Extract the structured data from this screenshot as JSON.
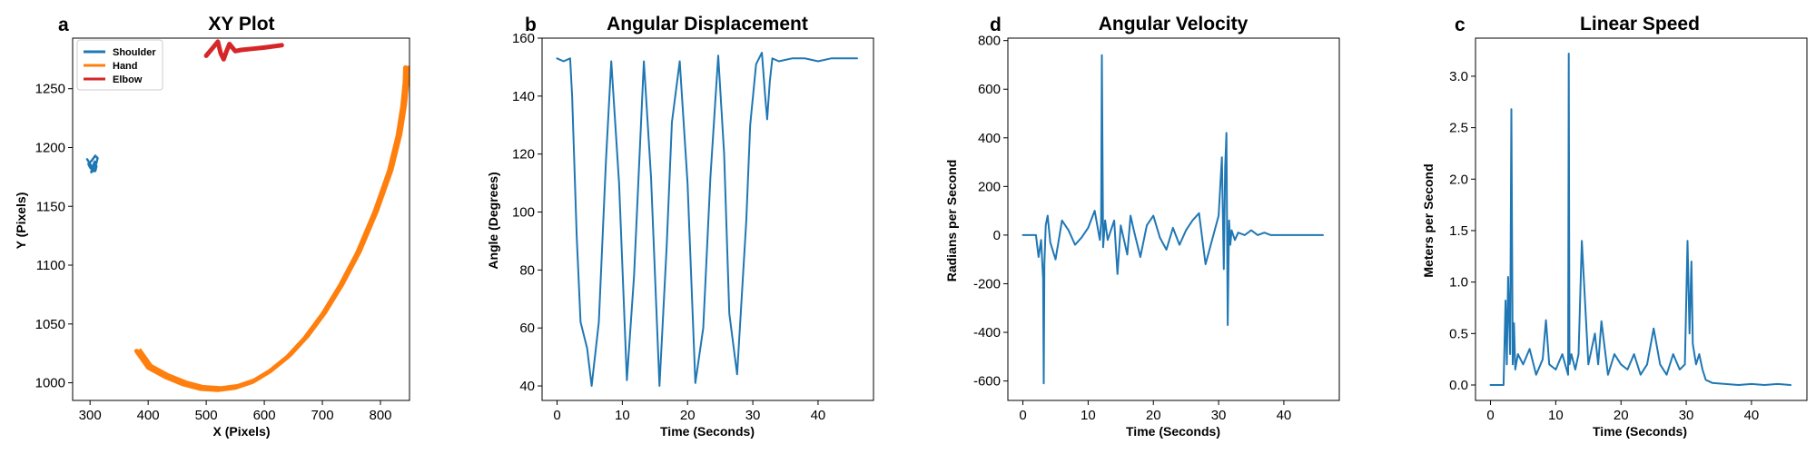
{
  "chart_data": [
    {
      "type": "line",
      "panel_letter": "a",
      "title": "XY Plot",
      "xlabel": "X (Pixels)",
      "ylabel": "Y (Pixels)",
      "xlim": [
        270,
        850
      ],
      "ylim": [
        985,
        1293
      ],
      "xticks": [
        300,
        400,
        500,
        600,
        700,
        800
      ],
      "yticks": [
        1000,
        1050,
        1100,
        1150,
        1200,
        1250
      ],
      "legend": "top-left",
      "series": [
        {
          "name": "Shoulder",
          "color": "#1f77b4",
          "x": [
            295,
            300,
            305,
            309,
            311,
            308,
            304,
            302,
            307,
            311,
            313,
            309,
            303,
            297,
            300,
            306
          ],
          "y": [
            1190,
            1186,
            1182,
            1180,
            1184,
            1188,
            1183,
            1179,
            1181,
            1187,
            1191,
            1193,
            1189,
            1186,
            1183,
            1180
          ]
        },
        {
          "name": "Hand",
          "color": "#ff7f0e",
          "x": [
            380,
            400,
            430,
            460,
            490,
            520,
            550,
            580,
            610,
            640,
            670,
            700,
            730,
            760,
            790,
            815,
            830,
            838,
            842,
            843
          ],
          "y": [
            1027,
            1013,
            1005,
            999,
            995,
            994,
            996,
            1001,
            1010,
            1022,
            1038,
            1058,
            1082,
            1110,
            1145,
            1180,
            1210,
            1235,
            1255,
            1268
          ]
        },
        {
          "name": "Elbow",
          "color": "#d62728",
          "x": [
            500,
            510,
            520,
            525,
            530,
            535,
            540,
            550,
            560,
            580,
            600,
            630
          ],
          "y": [
            1278,
            1284,
            1290,
            1280,
            1275,
            1282,
            1288,
            1282,
            1283,
            1284,
            1285,
            1287
          ]
        }
      ]
    },
    {
      "type": "line",
      "panel_letter": "b",
      "title": "Angular Displacement",
      "xlabel": "Time (Seconds)",
      "ylabel": "Angle (Degrees)",
      "xlim": [
        -2.3,
        48.5
      ],
      "ylim": [
        35,
        160
      ],
      "xticks": [
        0,
        10,
        20,
        30,
        40
      ],
      "yticks": [
        40,
        60,
        80,
        100,
        120,
        140,
        160
      ],
      "series": [
        {
          "name": "",
          "color": "#1f77b4",
          "x": [
            0,
            1,
            2,
            2.3,
            3,
            3.6,
            4.6,
            5.3,
            6.4,
            7.5,
            8.3,
            9.5,
            10.7,
            11.8,
            13.3,
            14.4,
            15.7,
            16.8,
            17.6,
            18.8,
            20.0,
            21.2,
            22.4,
            23.5,
            24.7,
            25.6,
            26.4,
            27.6,
            29.0,
            29.6,
            30.5,
            31.4,
            31.9,
            32.2,
            32.6,
            33.0,
            34.0,
            36.0,
            38.0,
            40.0,
            42.0,
            44.0,
            46.0
          ],
          "y": [
            153,
            152,
            153,
            140,
            92,
            62,
            53,
            40,
            62,
            118,
            152,
            110,
            42,
            78,
            152,
            112,
            40,
            88,
            131,
            152,
            110,
            41,
            60,
            112,
            154,
            120,
            65,
            44,
            97,
            130,
            151,
            155,
            140,
            132,
            145,
            153,
            152,
            153,
            153,
            152,
            153,
            153,
            153
          ]
        }
      ]
    },
    {
      "type": "line",
      "panel_letter": "d",
      "title": "Angular Velocity",
      "xlabel": "Time (Seconds)",
      "ylabel": "Radians per Second",
      "xlim": [
        -2.3,
        48.5
      ],
      "ylim": [
        -680,
        810
      ],
      "xticks": [
        0,
        10,
        20,
        30,
        40
      ],
      "yticks": [
        -600,
        -400,
        -200,
        0,
        200,
        400,
        600,
        800
      ],
      "series": [
        {
          "name": "",
          "color": "#1f77b4",
          "x": [
            0,
            1,
            2,
            2.4,
            2.8,
            3.1,
            3.2,
            3.3,
            3.5,
            3.8,
            4.2,
            5.0,
            6.0,
            7.0,
            8.0,
            9.0,
            10.0,
            11.0,
            11.8,
            12.0,
            12.1,
            12.3,
            12.6,
            13.0,
            14.0,
            14.5,
            15.0,
            16.0,
            16.5,
            17.0,
            18.0,
            19.0,
            20.0,
            21.0,
            22.0,
            23.0,
            24.0,
            25.0,
            26.0,
            27.0,
            28.0,
            29.0,
            30.0,
            30.5,
            30.8,
            31.0,
            31.2,
            31.4,
            31.6,
            31.8,
            32.0,
            32.5,
            33.0,
            34.0,
            35.0,
            36.0,
            37.0,
            38.0,
            40.0,
            42.0,
            44.0,
            46.0
          ],
          "y": [
            0,
            0,
            0,
            -90,
            -20,
            -180,
            -610,
            -120,
            40,
            80,
            -30,
            -100,
            60,
            20,
            -40,
            -10,
            30,
            100,
            -20,
            50,
            740,
            -50,
            60,
            -20,
            60,
            -160,
            40,
            -80,
            80,
            20,
            -90,
            40,
            80,
            -10,
            -60,
            30,
            -40,
            20,
            60,
            90,
            -120,
            -20,
            80,
            320,
            -140,
            280,
            420,
            -370,
            60,
            -40,
            20,
            -20,
            10,
            0,
            20,
            0,
            10,
            0,
            0,
            0,
            0,
            0
          ]
        }
      ]
    },
    {
      "type": "line",
      "panel_letter": "c",
      "title": "Linear Speed",
      "xlabel": "Time (Seconds)",
      "ylabel": "Meters per Second",
      "xlim": [
        -2.3,
        48.5
      ],
      "ylim": [
        -0.15,
        3.37
      ],
      "xticks": [
        0,
        10,
        20,
        30,
        40
      ],
      "yticks": [
        0.0,
        0.5,
        1.0,
        1.5,
        2.0,
        2.5,
        3.0
      ],
      "series": [
        {
          "name": "",
          "color": "#1f77b4",
          "x": [
            0,
            1,
            2,
            2.3,
            2.5,
            2.7,
            3.0,
            3.2,
            3.4,
            3.6,
            3.8,
            4.2,
            5.0,
            6.0,
            7.0,
            8.0,
            8.5,
            9.0,
            10.0,
            11.0,
            11.9,
            12.0,
            12.1,
            12.4,
            13.0,
            13.5,
            14.0,
            15.0,
            16.0,
            16.5,
            17.0,
            18.0,
            19.0,
            20.0,
            21.0,
            22.0,
            23.0,
            24.0,
            25.0,
            26.0,
            27.0,
            28.0,
            29.0,
            29.8,
            30.2,
            30.5,
            30.8,
            31.0,
            31.5,
            32.0,
            32.5,
            33.0,
            34.0,
            36.0,
            38.0,
            40.0,
            42.0,
            44.0,
            46.0
          ],
          "y": [
            0,
            0,
            0,
            0.82,
            0.2,
            1.05,
            0.3,
            2.68,
            0.2,
            0.6,
            0.15,
            0.3,
            0.2,
            0.35,
            0.1,
            0.25,
            0.63,
            0.2,
            0.15,
            0.3,
            0.1,
            3.22,
            0.2,
            0.3,
            0.15,
            0.3,
            1.4,
            0.2,
            0.5,
            0.2,
            0.62,
            0.1,
            0.3,
            0.2,
            0.15,
            0.3,
            0.1,
            0.2,
            0.55,
            0.2,
            0.1,
            0.3,
            0.15,
            0.2,
            1.4,
            0.5,
            1.2,
            0.4,
            0.2,
            0.3,
            0.15,
            0.05,
            0.02,
            0.01,
            0.0,
            0.01,
            0.0,
            0.01,
            0.0
          ]
        }
      ]
    }
  ]
}
